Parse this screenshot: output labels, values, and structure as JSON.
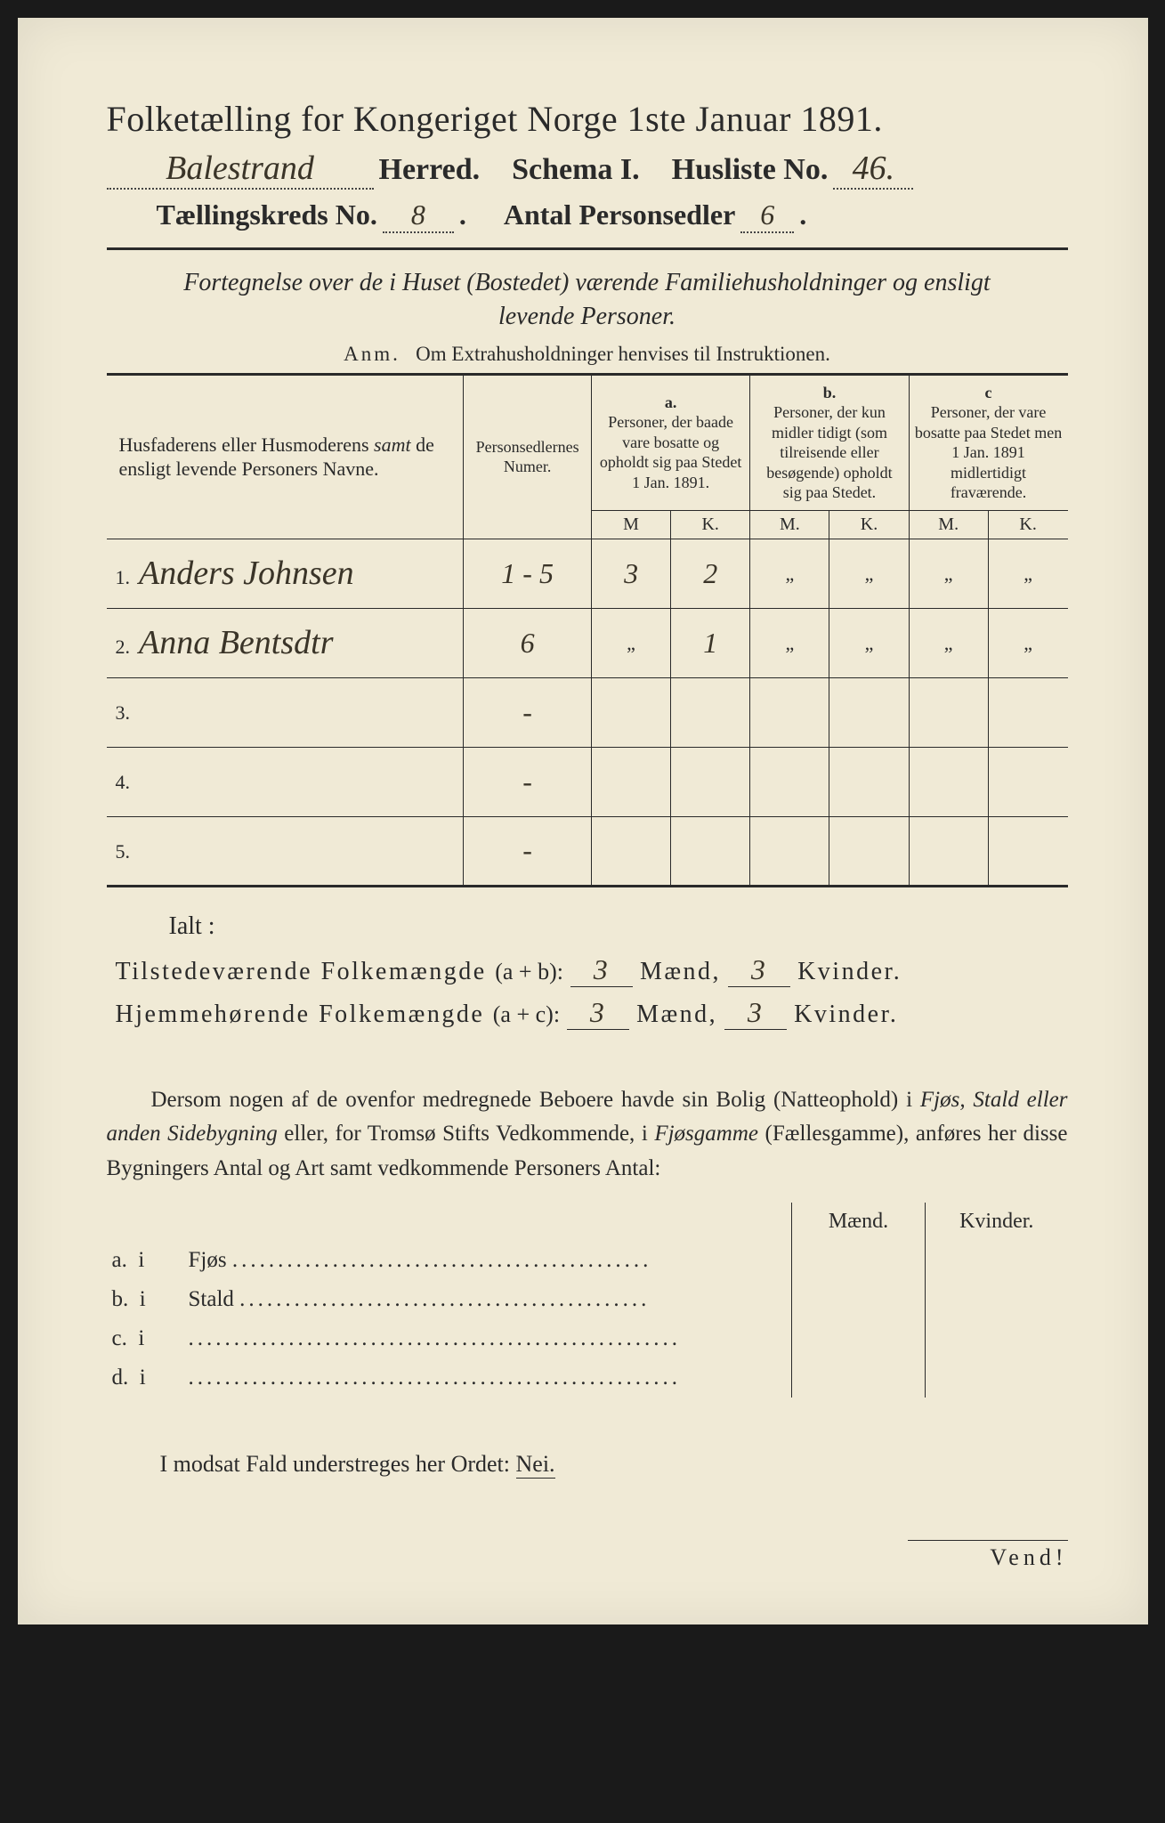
{
  "title": "Folketælling for Kongeriget Norge 1ste Januar 1891.",
  "header": {
    "herred_value": "Balestrand",
    "herred_label": "Herred.",
    "schema_label": "Schema I.",
    "husliste_label": "Husliste No.",
    "husliste_value": "46.",
    "kreds_label": "Tællingskreds No.",
    "kreds_value": "8",
    "antal_label": "Antal Personsedler",
    "antal_value": "6"
  },
  "subtitle_line1": "Fortegnelse over de i Huset (Bostedet) værende Familiehusholdninger og ensligt",
  "subtitle_line2": "levende Personer.",
  "anm_label": "Anm.",
  "anm_text": "Om Extrahusholdninger henvises til Instruktionen.",
  "table": {
    "col_names": "Husfaderens eller Husmoderens samt de ensligt levende Personers Navne.",
    "col_numer": "Personsedlernes Numer.",
    "col_a_head": "a.",
    "col_a": "Personer, der baade vare bosatte og opholdt sig paa Stedet 1 Jan. 1891.",
    "col_b_head": "b.",
    "col_b": "Personer, der kun midler tidigt (som tilreisende eller besøgende) opholdt sig paa Stedet.",
    "col_c_head": "c",
    "col_c": "Personer, der vare bosatte paa Stedet men 1 Jan. 1891 midlertidigt fraværende.",
    "m": "M",
    "k": "K.",
    "m2": "M.",
    "rows": [
      {
        "num": "1.",
        "name": "Anders Johnsen",
        "pers": "1 - 5",
        "am": "3",
        "ak": "2",
        "bm": "\"",
        "bk": "\"",
        "cm": "\"",
        "ck": "\""
      },
      {
        "num": "2.",
        "name": "Anna Bentsdtr",
        "pers": "6",
        "am": "\"",
        "ak": "1",
        "bm": "\"",
        "bk": "\"",
        "cm": "\"",
        "ck": "\""
      },
      {
        "num": "3.",
        "name": "",
        "pers": "-",
        "am": "",
        "ak": "",
        "bm": "",
        "bk": "",
        "cm": "",
        "ck": ""
      },
      {
        "num": "4.",
        "name": "",
        "pers": "-",
        "am": "",
        "ak": "",
        "bm": "",
        "bk": "",
        "cm": "",
        "ck": ""
      },
      {
        "num": "5.",
        "name": "",
        "pers": "-",
        "am": "",
        "ak": "",
        "bm": "",
        "bk": "",
        "cm": "",
        "ck": ""
      }
    ]
  },
  "ialt": "Ialt :",
  "totals": {
    "line1_label": "Tilstedeværende Folkemængde",
    "line1_paren": "(a + b):",
    "line1_m": "3",
    "line1_k": "3",
    "line2_label": "Hjemmehørende Folkemængde",
    "line2_paren": "(a + c):",
    "line2_m": "3",
    "line2_k": "3",
    "maend": "Mænd,",
    "kvinder": "Kvinder."
  },
  "para": "Dersom nogen af de ovenfor medregnede Beboere havde sin Bolig (Natteophold) i Fjøs, Stald eller anden Sidebygning eller, for Tromsø Stifts Vedkommende, i Fjøsgamme (Fællesgamme), anføres her disse Bygningers Antal og Art samt vedkommende Personers Antal:",
  "side": {
    "maend": "Mænd.",
    "kvinder": "Kvinder.",
    "a": "a.  i      Fjøs",
    "b": "b.  i      Stald",
    "c": "c.  i",
    "d": "d.  i"
  },
  "nei_text": "I modsat Fald understreges her Ordet:",
  "nei": "Nei.",
  "vend": "Vend!"
}
